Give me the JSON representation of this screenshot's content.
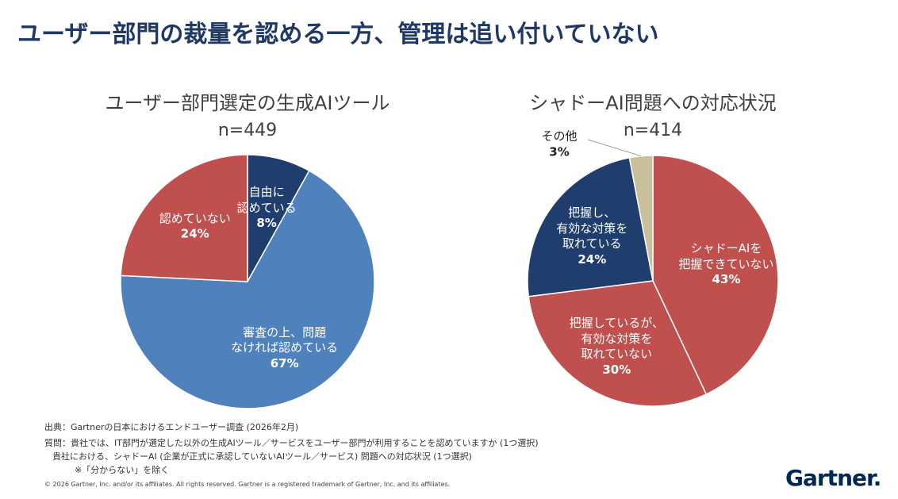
{
  "slide_title": "ユーザー部門の裁量を認める一方、管理は追い付いていない",
  "chart_data": [
    {
      "type": "pie",
      "title": "ユーザー部門選定の生成AIツール",
      "subtitle": "n=449",
      "categories": [
        "自由に\n認めている",
        "審査の上、問題\nなければ認めている",
        "認めていない"
      ],
      "values": [
        8,
        67,
        24
      ],
      "value_labels": [
        "8%",
        "67%",
        "24%"
      ],
      "colors": [
        "#1f3e6e",
        "#4f81bd",
        "#c0504d"
      ]
    },
    {
      "type": "pie",
      "title": "シャドーAI問題への対応状況",
      "subtitle": "n=414",
      "categories": [
        "シャドーAIを\n把握できていない",
        "把握しているが、\n有効な対策を\n取れていない",
        "把握し、\n有効な対策を\n取れている",
        "その他"
      ],
      "values": [
        43,
        30,
        24,
        3
      ],
      "value_labels": [
        "43%",
        "30%",
        "24%",
        "3%"
      ],
      "colors": [
        "#c0504d",
        "#c0504d",
        "#1f3e6e",
        "#c9bf9a"
      ]
    }
  ],
  "footer": {
    "source": "出典：Gartnerの日本におけるエンドユーザー調査 (2026年2月)",
    "question": [
      "質問：貴社では、IT部門が選定した以外の生成AIツール／サービスをユーザー部門が利用することを認めていますか (1つ選択)",
      "貴社における、シャドーAI (企業が正式に承認していないAIツール／サービス) 問題への対応状況 (1つ選択)",
      "※「分からない」を除く"
    ],
    "copyright": "© 2026 Gartner, Inc. and/or its affiliates. All rights reserved. Gartner is a registered trademark of Gartner, Inc. and its affiliates.",
    "logo": "Gartner."
  }
}
